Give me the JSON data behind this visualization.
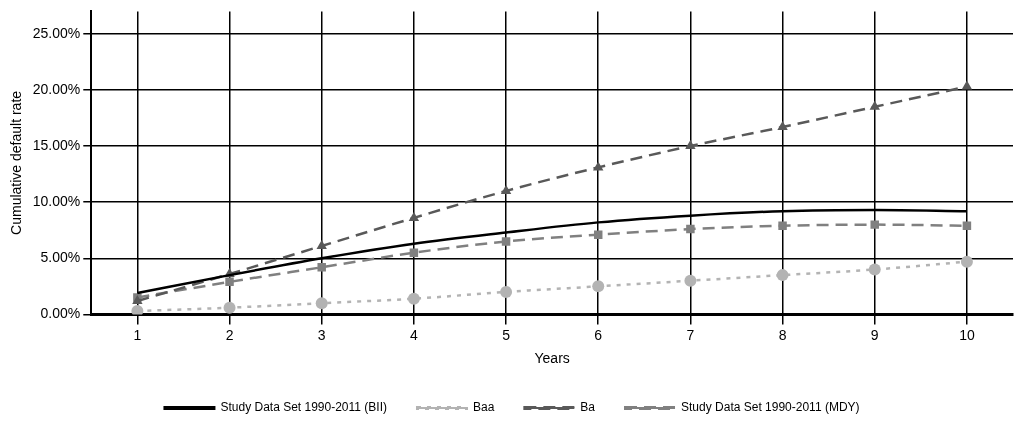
{
  "chart_data": {
    "type": "line",
    "xlabel": "Years",
    "ylabel": "Cumulative default rate",
    "categories": [
      "1",
      "2",
      "3",
      "4",
      "5",
      "6",
      "7",
      "8",
      "9",
      "10"
    ],
    "ylim": [
      0,
      27
    ],
    "yticks": [
      {
        "value": 0,
        "label": "0.00%"
      },
      {
        "value": 5,
        "label": "5.00%"
      },
      {
        "value": 10,
        "label": "10.00%"
      },
      {
        "value": 15,
        "label": "15.00%"
      },
      {
        "value": 20,
        "label": "20.00%"
      },
      {
        "value": 25,
        "label": "25.00%"
      }
    ],
    "grid": true,
    "legend": "bottom",
    "series": [
      {
        "name": "Study Data Set 1990-2011 (BII)",
        "color": "#000000",
        "line_style": "solid",
        "marker": "none",
        "values": [
          1.9,
          3.5,
          5.0,
          6.3,
          7.3,
          8.2,
          8.8,
          9.2,
          9.3,
          9.2
        ]
      },
      {
        "name": "Baa",
        "color": "#b3b3b3",
        "line_style": "dotted",
        "marker": "circle",
        "values": [
          0.3,
          0.6,
          1.0,
          1.4,
          2.0,
          2.5,
          3.0,
          3.5,
          4.0,
          4.7
        ]
      },
      {
        "name": "Ba",
        "color": "#595959",
        "line_style": "dashed",
        "marker": "triangle",
        "values": [
          1.2,
          3.6,
          6.1,
          8.6,
          11.0,
          13.1,
          15.0,
          16.7,
          18.5,
          20.3
        ]
      },
      {
        "name": "Study Data Set 1990-2011 (MDY)",
        "color": "#808080",
        "line_style": "dashed",
        "marker": "square",
        "values": [
          1.5,
          2.9,
          4.2,
          5.5,
          6.5,
          7.1,
          7.6,
          7.9,
          8.0,
          7.9
        ]
      }
    ]
  }
}
